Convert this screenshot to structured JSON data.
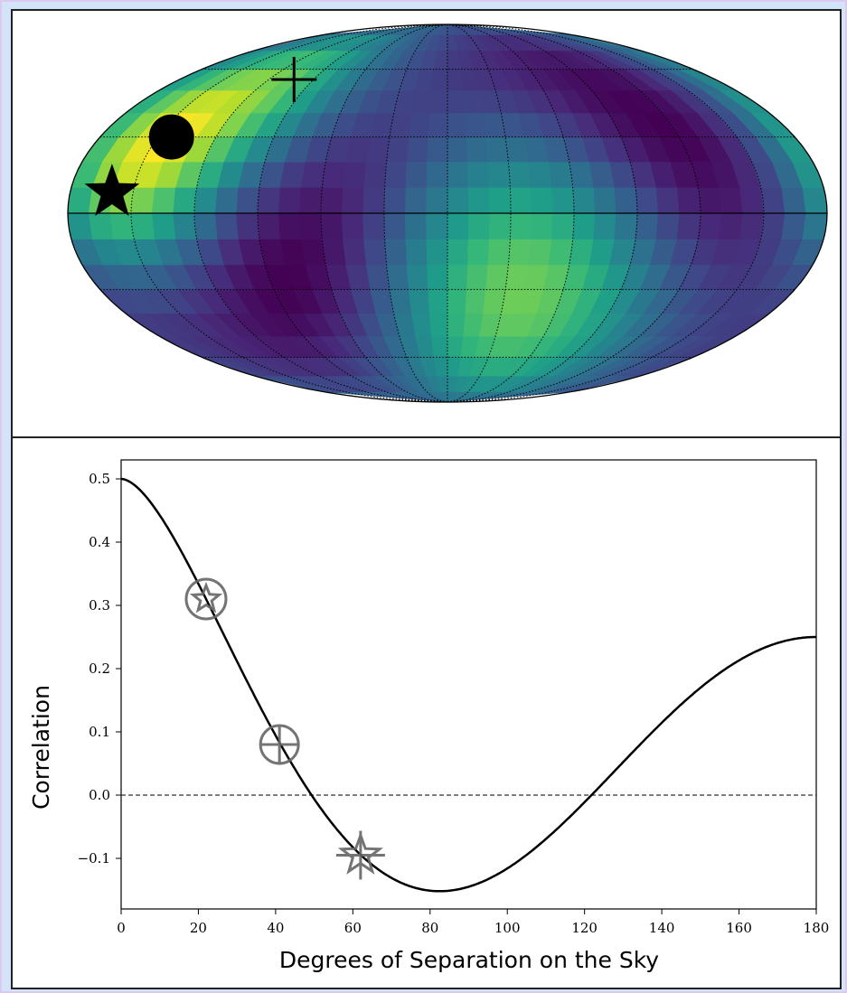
{
  "chart_data": [
    {
      "type": "heatmap",
      "projection": "mollweide",
      "colormap": "viridis",
      "grid": true,
      "markers": [
        {
          "symbol": "star",
          "lon": -160,
          "lat": 8
        },
        {
          "symbol": "circle",
          "lon": -143,
          "lat": 30
        },
        {
          "symbol": "plus",
          "lon": -103,
          "lat": 55
        }
      ]
    },
    {
      "type": "line",
      "xlabel": "Degrees of Separation on the Sky",
      "ylabel": "Correlation",
      "xlim": [
        0,
        180
      ],
      "ylim": [
        -0.18,
        0.53
      ],
      "xticks": [
        0,
        20,
        40,
        60,
        80,
        100,
        120,
        140,
        160,
        180
      ],
      "yticks": [
        -0.1,
        0.0,
        0.1,
        0.2,
        0.3,
        0.4,
        0.5
      ],
      "ytick_labels": [
        "−0.1",
        "0.0",
        "0.1",
        "0.2",
        "0.3",
        "0.4",
        "0.5"
      ],
      "curve": "Hellings-Downs",
      "reference_line": {
        "y": 0.0,
        "style": "dashed"
      },
      "points": [
        {
          "symbol": "circle-star",
          "x": 22,
          "y": 0.31
        },
        {
          "symbol": "circle-plus",
          "x": 41,
          "y": 0.08
        },
        {
          "symbol": "star-plus",
          "x": 62,
          "y": -0.095
        }
      ],
      "grid": false
    }
  ]
}
